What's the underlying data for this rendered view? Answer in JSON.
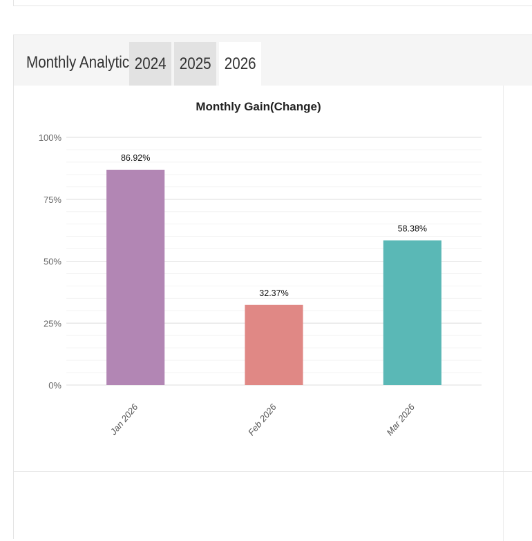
{
  "panel": {
    "title": "Monthly Analytics",
    "tabs": [
      {
        "label": "2024",
        "active": false
      },
      {
        "label": "2025",
        "active": false
      },
      {
        "label": "2026",
        "active": true
      }
    ]
  },
  "chart_data": {
    "type": "bar",
    "title": "Monthly Gain(Change)",
    "xlabel": "",
    "ylabel": "",
    "categories": [
      "Jan 2026",
      "Feb 2026",
      "Mar 2026"
    ],
    "values": [
      86.92,
      32.37,
      58.38
    ],
    "value_labels": [
      "86.92%",
      "32.37%",
      "58.38%"
    ],
    "colors": [
      "#b286b4",
      "#e08885",
      "#5ab8b6"
    ],
    "ylim": [
      0,
      100
    ],
    "yticks": [
      0,
      25,
      50,
      75,
      100
    ],
    "ytick_labels": [
      "0%",
      "25%",
      "50%",
      "75%",
      "100%"
    ],
    "grid": true,
    "legend": "none"
  }
}
